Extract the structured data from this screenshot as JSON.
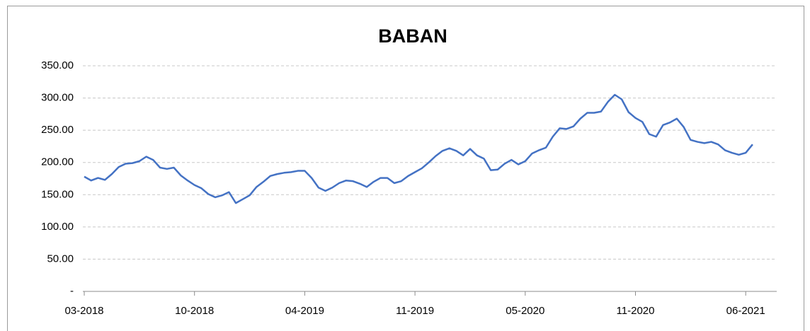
{
  "chart_data": {
    "type": "line",
    "title": "BABAN",
    "categories": [
      "03-2018",
      null,
      null,
      null,
      null,
      null,
      null,
      null,
      null,
      null,
      null,
      null,
      null,
      null,
      null,
      null,
      "10-2018",
      null,
      null,
      null,
      null,
      null,
      null,
      null,
      null,
      null,
      null,
      null,
      null,
      null,
      null,
      null,
      "04-2019",
      null,
      null,
      null,
      null,
      null,
      null,
      null,
      null,
      null,
      null,
      null,
      null,
      null,
      null,
      null,
      "11-2019",
      null,
      null,
      null,
      null,
      null,
      null,
      null,
      null,
      null,
      null,
      null,
      null,
      null,
      null,
      null,
      "05-2020",
      null,
      null,
      null,
      null,
      null,
      null,
      null,
      null,
      null,
      null,
      null,
      null,
      null,
      null,
      null,
      "11-2020",
      null,
      null,
      null,
      null,
      null,
      null,
      null,
      null,
      null,
      null,
      null,
      null,
      null,
      null,
      null,
      "06-2021",
      null
    ],
    "series": [
      {
        "name": "BABAN",
        "color": "#4472c4",
        "values": [
          178,
          172,
          176,
          173,
          182,
          193,
          198,
          199,
          202,
          209,
          204,
          192,
          190,
          192,
          180,
          172,
          165,
          160,
          151,
          146,
          149,
          154,
          137,
          143,
          149,
          162,
          170,
          179,
          182,
          184,
          185,
          187,
          187,
          176,
          161,
          156,
          161,
          168,
          172,
          171,
          167,
          162,
          170,
          176,
          176,
          168,
          171,
          179,
          185,
          191,
          200,
          210,
          218,
          222,
          218,
          211,
          221,
          211,
          206,
          188,
          189,
          198,
          204,
          197,
          202,
          214,
          219,
          223,
          240,
          253,
          252,
          256,
          268,
          277,
          277,
          279,
          294,
          305,
          298,
          278,
          269,
          263,
          244,
          240,
          258,
          262,
          268,
          255,
          235,
          232,
          230,
          232,
          228,
          219,
          215,
          212,
          215,
          228
        ]
      }
    ],
    "ylim": [
      0,
      350
    ],
    "yticks": [
      {
        "value": 0,
        "label": "-"
      },
      {
        "value": 50,
        "label": "50.00"
      },
      {
        "value": 100,
        "label": "100.00"
      },
      {
        "value": 150,
        "label": "150.00"
      },
      {
        "value": 200,
        "label": "200.00"
      },
      {
        "value": 250,
        "label": "250.00"
      },
      {
        "value": 300,
        "label": "300.00"
      },
      {
        "value": 350,
        "label": "350.00"
      }
    ],
    "grid": true
  }
}
